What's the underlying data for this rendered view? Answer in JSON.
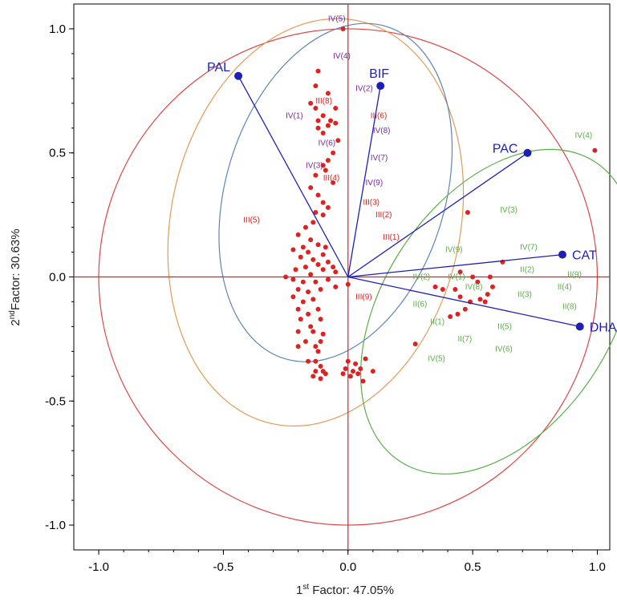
{
  "chart_data": {
    "type": "scatter",
    "title": "",
    "xlabel": {
      "main": "1",
      "sup": "st",
      "rest": " Factor: 47.05%"
    },
    "ylabel": {
      "main": "2",
      "sup": "nd",
      "rest": "Factor: 30.63%"
    },
    "xlim": [
      -1.1,
      1.05
    ],
    "ylim": [
      -1.1,
      1.1
    ],
    "xticks": [
      -1.0,
      -0.5,
      0.0,
      0.5,
      1.0
    ],
    "yticks": [
      -1.0,
      -0.5,
      0.0,
      0.5,
      1.0
    ],
    "xtick_labels": [
      "-1.0",
      "-0.5",
      "0.0",
      "0.5",
      "1.0"
    ],
    "ytick_labels": [
      "-1.0",
      "-0.5",
      "0.0",
      "0.5",
      "1.0"
    ],
    "colors": {
      "red": "#dd2222",
      "blue": "#1f1fb8",
      "green": "#5cae4a",
      "purple": "#7a2a9a",
      "orange": "#e39a55",
      "steel": "#5b86b0",
      "circle": "#dd4444"
    },
    "vectors": [
      {
        "name": "PAL",
        "x": -0.44,
        "y": 0.81
      },
      {
        "name": "BIF",
        "x": 0.13,
        "y": 0.77
      },
      {
        "name": "PAC",
        "x": 0.72,
        "y": 0.5
      },
      {
        "name": "CAT",
        "x": 0.86,
        "y": 0.09
      },
      {
        "name": "DHA",
        "x": 0.93,
        "y": -0.2
      }
    ],
    "ellipses": [
      {
        "color": "orange",
        "cx": -0.13,
        "cy": 0.22,
        "rx": 0.58,
        "ry": 0.83,
        "angle": 12
      },
      {
        "color": "steel",
        "cx": -0.05,
        "cy": 0.34,
        "rx": 0.44,
        "ry": 0.7,
        "angle": 17
      },
      {
        "color": "green",
        "cx": 0.6,
        "cy": -0.14,
        "rx": 0.46,
        "ry": 0.72,
        "angle": 33
      }
    ],
    "points": [
      [
        -0.02,
        1.0
      ],
      [
        -0.12,
        0.83
      ],
      [
        -0.13,
        0.77
      ],
      [
        -0.08,
        0.74
      ],
      [
        -0.15,
        0.7
      ],
      [
        -0.13,
        0.68
      ],
      [
        -0.05,
        0.68
      ],
      [
        -0.1,
        0.65
      ],
      [
        -0.12,
        0.63
      ],
      [
        -0.07,
        0.63
      ],
      [
        -0.05,
        0.62
      ],
      [
        -0.08,
        0.61
      ],
      [
        -0.12,
        0.6
      ],
      [
        -0.1,
        0.58
      ],
      [
        -0.04,
        0.55
      ],
      [
        -0.06,
        0.5
      ],
      [
        -0.08,
        0.47
      ],
      [
        -0.1,
        0.45
      ],
      [
        -0.09,
        0.43
      ],
      [
        -0.13,
        0.41
      ],
      [
        -0.06,
        0.38
      ],
      [
        -0.15,
        0.36
      ],
      [
        -0.12,
        0.33
      ],
      [
        -0.1,
        0.3
      ],
      [
        -0.08,
        0.28
      ],
      [
        -0.13,
        0.26
      ],
      [
        -0.1,
        0.25
      ],
      [
        -0.14,
        0.22
      ],
      [
        -0.17,
        0.2
      ],
      [
        -0.2,
        0.17
      ],
      [
        -0.15,
        0.15
      ],
      [
        -0.18,
        0.12
      ],
      [
        -0.12,
        0.13
      ],
      [
        -0.09,
        0.12
      ],
      [
        -0.16,
        0.1
      ],
      [
        -0.1,
        0.09
      ],
      [
        -0.22,
        0.11
      ],
      [
        -0.19,
        0.08
      ],
      [
        -0.14,
        0.07
      ],
      [
        -0.08,
        0.06
      ],
      [
        -0.12,
        0.05
      ],
      [
        -0.17,
        0.04
      ],
      [
        -0.21,
        0.03
      ],
      [
        -0.1,
        0.03
      ],
      [
        -0.06,
        0.04
      ],
      [
        -0.15,
        0.01
      ],
      [
        -0.25,
        0.0
      ],
      [
        -0.22,
        -0.01
      ],
      [
        -0.18,
        -0.02
      ],
      [
        -0.13,
        -0.02
      ],
      [
        -0.08,
        -0.01
      ],
      [
        -0.05,
        0.02
      ],
      [
        -0.2,
        -0.05
      ],
      [
        -0.16,
        -0.06
      ],
      [
        -0.11,
        -0.05
      ],
      [
        -0.22,
        -0.08
      ],
      [
        -0.18,
        -0.1
      ],
      [
        -0.14,
        -0.09
      ],
      [
        -0.2,
        -0.13
      ],
      [
        -0.16,
        -0.15
      ],
      [
        -0.12,
        -0.13
      ],
      [
        -0.19,
        -0.17
      ],
      [
        -0.15,
        -0.2
      ],
      [
        -0.11,
        -0.17
      ],
      [
        -0.2,
        -0.22
      ],
      [
        -0.14,
        -0.22
      ],
      [
        -0.1,
        -0.23
      ],
      [
        -0.17,
        -0.26
      ],
      [
        -0.13,
        -0.28
      ],
      [
        -0.11,
        -0.26
      ],
      [
        -0.2,
        -0.28
      ],
      [
        -0.12,
        -0.3
      ],
      [
        -0.13,
        -0.34
      ],
      [
        -0.11,
        -0.36
      ],
      [
        -0.13,
        -0.38
      ],
      [
        -0.1,
        -0.38
      ],
      [
        -0.14,
        -0.4
      ],
      [
        -0.11,
        -0.41
      ],
      [
        -0.09,
        -0.39
      ],
      [
        -0.16,
        -0.34
      ],
      [
        0.0,
        -0.34
      ],
      [
        0.03,
        -0.35
      ],
      [
        -0.01,
        -0.37
      ],
      [
        0.02,
        -0.38
      ],
      [
        0.05,
        -0.37
      ],
      [
        -0.02,
        -0.39
      ],
      [
        0.01,
        -0.4
      ],
      [
        0.04,
        -0.39
      ],
      [
        0.1,
        -0.38
      ],
      [
        0.06,
        -0.42
      ],
      [
        0.07,
        -0.33
      ],
      [
        -0.05,
        -0.04
      ],
      [
        0.0,
        -0.03
      ],
      [
        0.27,
        -0.27
      ],
      [
        0.48,
        0.26
      ],
      [
        0.62,
        0.06
      ],
      [
        0.99,
        0.51
      ],
      [
        0.45,
        0.02
      ],
      [
        0.52,
        -0.02
      ],
      [
        0.58,
        -0.04
      ],
      [
        0.56,
        -0.07
      ],
      [
        0.53,
        -0.09
      ],
      [
        0.49,
        -0.1
      ],
      [
        0.47,
        -0.13
      ],
      [
        0.44,
        -0.15
      ],
      [
        0.41,
        -0.16
      ],
      [
        0.38,
        -0.05
      ],
      [
        0.43,
        -0.05
      ],
      [
        0.35,
        -0.04
      ],
      [
        0.5,
        0.0
      ],
      [
        0.57,
        0.0
      ],
      [
        0.55,
        -0.1
      ],
      [
        0.45,
        -0.08
      ]
    ],
    "point_labels": [
      {
        "text": "IV(5)",
        "x": -0.08,
        "y": 1.03,
        "color": "purple"
      },
      {
        "text": "IV(4)",
        "x": -0.06,
        "y": 0.88,
        "color": "purple"
      },
      {
        "text": "IV(2)",
        "x": 0.03,
        "y": 0.75,
        "color": "purple"
      },
      {
        "text": "III(8)",
        "x": -0.13,
        "y": 0.7,
        "color": "red"
      },
      {
        "text": "III(6)",
        "x": 0.09,
        "y": 0.64,
        "color": "red"
      },
      {
        "text": "IV(1)",
        "x": -0.25,
        "y": 0.64,
        "color": "purple"
      },
      {
        "text": "IV(8)",
        "x": 0.1,
        "y": 0.58,
        "color": "purple"
      },
      {
        "text": "IV(6)",
        "x": -0.12,
        "y": 0.53,
        "color": "purple"
      },
      {
        "text": "IV(7)",
        "x": 0.09,
        "y": 0.47,
        "color": "purple"
      },
      {
        "text": "IV(3)",
        "x": -0.17,
        "y": 0.44,
        "color": "purple"
      },
      {
        "text": "III(4)",
        "x": -0.1,
        "y": 0.39,
        "color": "red"
      },
      {
        "text": "IV(9)",
        "x": 0.07,
        "y": 0.37,
        "color": "purple"
      },
      {
        "text": "III(3)",
        "x": 0.06,
        "y": 0.29,
        "color": "red"
      },
      {
        "text": "III(5)",
        "x": -0.42,
        "y": 0.22,
        "color": "red"
      },
      {
        "text": "III(2)",
        "x": 0.11,
        "y": 0.24,
        "color": "red"
      },
      {
        "text": "III(1)",
        "x": 0.14,
        "y": 0.15,
        "color": "red"
      },
      {
        "text": "III(9)",
        "x": 0.03,
        "y": -0.09,
        "color": "red"
      },
      {
        "text": "IV(4)",
        "x": 0.91,
        "y": 0.56,
        "color": "green"
      },
      {
        "text": "IV(3)",
        "x": 0.61,
        "y": 0.26,
        "color": "green"
      },
      {
        "text": "IV(9)",
        "x": 0.39,
        "y": 0.1,
        "color": "green"
      },
      {
        "text": "IV(7)",
        "x": 0.69,
        "y": 0.11,
        "color": "green"
      },
      {
        "text": "II(2)",
        "x": 0.69,
        "y": 0.02,
        "color": "green"
      },
      {
        "text": "II(9)",
        "x": 0.88,
        "y": 0.0,
        "color": "green"
      },
      {
        "text": "IV(2)",
        "x": 0.26,
        "y": -0.01,
        "color": "green"
      },
      {
        "text": "IV(1)",
        "x": 0.4,
        "y": -0.01,
        "color": "green"
      },
      {
        "text": "IV(8)",
        "x": 0.47,
        "y": -0.05,
        "color": "green"
      },
      {
        "text": "II(4)",
        "x": 0.84,
        "y": -0.05,
        "color": "green"
      },
      {
        "text": "II(3)",
        "x": 0.68,
        "y": -0.08,
        "color": "green"
      },
      {
        "text": "II(6)",
        "x": 0.26,
        "y": -0.12,
        "color": "green"
      },
      {
        "text": "II(8)",
        "x": 0.86,
        "y": -0.13,
        "color": "green"
      },
      {
        "text": "II(1)",
        "x": 0.33,
        "y": -0.19,
        "color": "green"
      },
      {
        "text": "II(5)",
        "x": 0.6,
        "y": -0.21,
        "color": "green"
      },
      {
        "text": "II(7)",
        "x": 0.44,
        "y": -0.26,
        "color": "green"
      },
      {
        "text": "IV(6)",
        "x": 0.59,
        "y": -0.3,
        "color": "green"
      },
      {
        "text": "IV(5)",
        "x": 0.32,
        "y": -0.34,
        "color": "green"
      }
    ]
  }
}
